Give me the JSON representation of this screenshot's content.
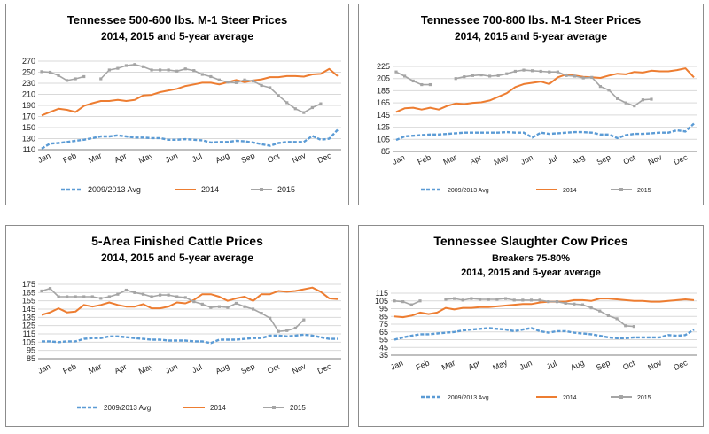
{
  "colors": {
    "avg": "#5b9bd5",
    "y2014": "#ed7d31",
    "y2015": "#a5a5a5",
    "grid": "#d9d9d9",
    "axis": "#7f7f7f"
  },
  "chart_data": [
    {
      "type": "line",
      "title": "Tennessee 500-600 lbs. M-1 Steer Prices",
      "subtitle": "2014, 2015 and 5-year average",
      "subtitle2": "",
      "ylim": [
        110,
        270
      ],
      "yticks": [
        110,
        130,
        150,
        170,
        190,
        210,
        230,
        250,
        270
      ],
      "months": [
        "Jan",
        "Feb",
        "Mar",
        "Apr",
        "May",
        "Jun",
        "Jul",
        "Aug",
        "Sep",
        "Oct",
        "Nov",
        "Dec"
      ],
      "legend": [
        "2009/2013 Avg",
        "2014",
        "2015"
      ],
      "series": [
        {
          "name": "2009/2013 Avg",
          "values": [
            112,
            121,
            122,
            124,
            126,
            128,
            131,
            134,
            134,
            136,
            134,
            132,
            132,
            131,
            131,
            128,
            128,
            129,
            128,
            127,
            123,
            124,
            124,
            126,
            125,
            123,
            120,
            117,
            122,
            124,
            124,
            124,
            135,
            128,
            130,
            146
          ]
        },
        {
          "name": "2014",
          "values": [
            172,
            178,
            184,
            182,
            178,
            189,
            194,
            198,
            198,
            200,
            198,
            200,
            208,
            209,
            214,
            217,
            220,
            225,
            228,
            231,
            231,
            228,
            232,
            236,
            232,
            235,
            237,
            241,
            241,
            243,
            243,
            242,
            246,
            247,
            256,
            243
          ]
        },
        {
          "name": "2015",
          "values": [
            251,
            250,
            244,
            235,
            238,
            242,
            null,
            238,
            254,
            257,
            262,
            264,
            260,
            254,
            254,
            254,
            252,
            256,
            253,
            246,
            242,
            236,
            232,
            231,
            236,
            234,
            226,
            222,
            208,
            195,
            184,
            177,
            186,
            193,
            null,
            null
          ]
        }
      ]
    },
    {
      "type": "line",
      "title": "Tennessee 700-800 lbs. M-1 Steer Prices",
      "subtitle": "2014, 2015 and 5-year average",
      "subtitle2": "",
      "ylim": [
        85,
        225
      ],
      "yticks": [
        85,
        105,
        125,
        145,
        165,
        185,
        205,
        225
      ],
      "months": [
        "Jan",
        "Feb",
        "Mar",
        "Apr",
        "May",
        "Jun",
        "Jul",
        "Aug",
        "Sep",
        "Oct",
        "Nov",
        "Dec"
      ],
      "legend": [
        "2009/2013 Avg",
        "2014",
        "2015"
      ],
      "series": [
        {
          "name": "2009/2013 Avg",
          "values": [
            104,
            110,
            111,
            112,
            113,
            113,
            114,
            115,
            116,
            116,
            116,
            116,
            116,
            117,
            116,
            116,
            108,
            116,
            114,
            115,
            116,
            117,
            117,
            116,
            113,
            113,
            107,
            112,
            114,
            114,
            115,
            116,
            116,
            120,
            118,
            131
          ]
        },
        {
          "name": "2014",
          "values": [
            150,
            156,
            157,
            154,
            157,
            154,
            160,
            164,
            163,
            165,
            166,
            169,
            175,
            181,
            191,
            196,
            198,
            200,
            196,
            207,
            212,
            210,
            208,
            207,
            206,
            210,
            213,
            212,
            216,
            215,
            218,
            217,
            217,
            219,
            222,
            207
          ]
        },
        {
          "name": "2015",
          "values": [
            216,
            209,
            201,
            195,
            195,
            null,
            null,
            205,
            208,
            210,
            211,
            209,
            210,
            213,
            217,
            219,
            218,
            217,
            216,
            216,
            210,
            209,
            206,
            207,
            192,
            186,
            172,
            165,
            160,
            170,
            171,
            null,
            null,
            null,
            null,
            null
          ]
        }
      ]
    },
    {
      "type": "line",
      "title": "5-Area Finished Cattle Prices",
      "subtitle": "2014, 2015 and 5-year average",
      "subtitle2": "",
      "ylim": [
        85,
        175
      ],
      "yticks": [
        85,
        95,
        105,
        115,
        125,
        135,
        145,
        155,
        165,
        175
      ],
      "months": [
        "Jan",
        "Feb",
        "Mar",
        "Apr",
        "May",
        "Jun",
        "Jul",
        "Aug",
        "Sep",
        "Oct",
        "Nov",
        "Dec"
      ],
      "legend": [
        "2009/2013 Avg",
        "2014",
        "2015"
      ],
      "series": [
        {
          "name": "2009/2013 Avg",
          "values": [
            106,
            106,
            105,
            106,
            106,
            109,
            110,
            110,
            112,
            112,
            111,
            110,
            109,
            108,
            108,
            107,
            107,
            107,
            106,
            106,
            104,
            108,
            108,
            108,
            109,
            110,
            110,
            113,
            113,
            112,
            113,
            114,
            113,
            111,
            109,
            109
          ]
        },
        {
          "name": "2014",
          "values": [
            138,
            141,
            146,
            141,
            142,
            150,
            148,
            150,
            153,
            150,
            148,
            148,
            151,
            146,
            146,
            148,
            153,
            152,
            156,
            163,
            163,
            160,
            155,
            158,
            160,
            155,
            163,
            163,
            167,
            166,
            167,
            169,
            171,
            166,
            158,
            157
          ]
        },
        {
          "name": "2015",
          "values": [
            167,
            170,
            160,
            160,
            160,
            160,
            160,
            158,
            160,
            163,
            168,
            165,
            163,
            160,
            162,
            162,
            160,
            159,
            154,
            151,
            147,
            148,
            147,
            152,
            148,
            145,
            140,
            134,
            118,
            119,
            122,
            132,
            null,
            null,
            null,
            null
          ]
        }
      ]
    },
    {
      "type": "line",
      "title": "Tennessee Slaughter Cow Prices",
      "subtitle": "Breakers 75-80%",
      "subtitle2": "2014, 2015 and 5-year average",
      "ylim": [
        35,
        115
      ],
      "yticks": [
        35,
        45,
        55,
        65,
        75,
        85,
        95,
        105,
        115
      ],
      "months": [
        "Jan",
        "Feb",
        "Mar",
        "Apr",
        "May",
        "Jun",
        "Jul",
        "Aug",
        "Sep",
        "Oct",
        "Nov",
        "Dec"
      ],
      "legend": [
        "2009/2013 Avg",
        "2014",
        "2015"
      ],
      "series": [
        {
          "name": "2009/2013 Avg",
          "values": [
            55,
            58,
            60,
            62,
            62,
            63,
            64,
            65,
            67,
            68,
            69,
            70,
            69,
            68,
            66,
            68,
            70,
            66,
            64,
            66,
            66,
            64,
            63,
            62,
            60,
            58,
            57,
            57,
            58,
            58,
            58,
            58,
            61,
            60,
            61,
            68
          ]
        },
        {
          "name": "2014",
          "values": [
            85,
            84,
            86,
            90,
            88,
            90,
            96,
            94,
            96,
            96,
            97,
            97,
            98,
            99,
            100,
            101,
            101,
            103,
            104,
            104,
            104,
            106,
            106,
            105,
            108,
            108,
            107,
            106,
            105,
            105,
            104,
            104,
            105,
            106,
            107,
            106
          ]
        },
        {
          "name": "2015",
          "values": [
            105,
            104,
            100,
            105,
            null,
            null,
            107,
            108,
            106,
            108,
            107,
            107,
            107,
            108,
            106,
            106,
            106,
            106,
            104,
            104,
            102,
            101,
            100,
            96,
            92,
            86,
            82,
            73,
            72,
            null,
            null,
            null,
            null,
            null,
            null,
            null
          ]
        }
      ]
    }
  ]
}
